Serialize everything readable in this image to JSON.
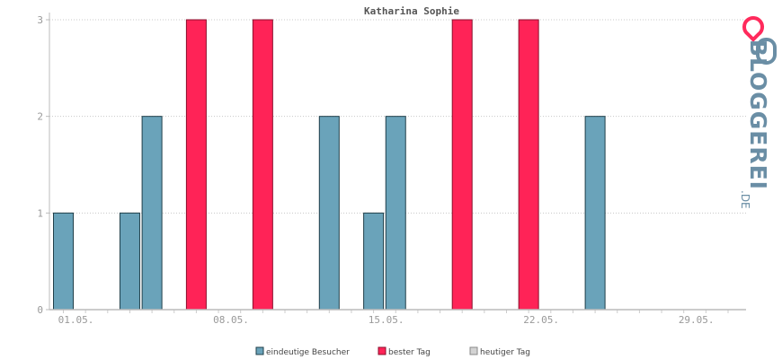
{
  "chart_data": {
    "type": "bar",
    "title": "Katharina Sophie",
    "xlabel": "",
    "ylabel": "",
    "ylim": [
      0,
      3
    ],
    "yticks": [
      "0",
      "1",
      "2",
      "3"
    ],
    "x_tick_labels": [
      "01.05.",
      "08.05.",
      "15.05.",
      "22.05.",
      "29.05."
    ],
    "x_tick_days": [
      1,
      8,
      15,
      22,
      29
    ],
    "grid": true,
    "legend_position": "bottom",
    "series": [
      {
        "name": "eindeutige Besucher",
        "color": "#6aa3ba",
        "stroke": "#203f4a",
        "points": [
          {
            "day": 1,
            "value": 1
          },
          {
            "day": 4,
            "value": 1
          },
          {
            "day": 5,
            "value": 2
          },
          {
            "day": 13,
            "value": 2
          },
          {
            "day": 15,
            "value": 1
          },
          {
            "day": 16,
            "value": 2
          },
          {
            "day": 25,
            "value": 2
          }
        ]
      },
      {
        "name": "bester Tag",
        "color": "#ff2357",
        "stroke": "#8a0f2c",
        "points": [
          {
            "day": 7,
            "value": 3
          },
          {
            "day": 10,
            "value": 3
          },
          {
            "day": 19,
            "value": 3
          },
          {
            "day": 22,
            "value": 3
          }
        ]
      },
      {
        "name": "heutiger Tag",
        "color": "#d3d3d3",
        "stroke": "#888888",
        "points": []
      }
    ]
  },
  "branding": {
    "name": "BLOGGEREI",
    "suffix": ".DE"
  }
}
